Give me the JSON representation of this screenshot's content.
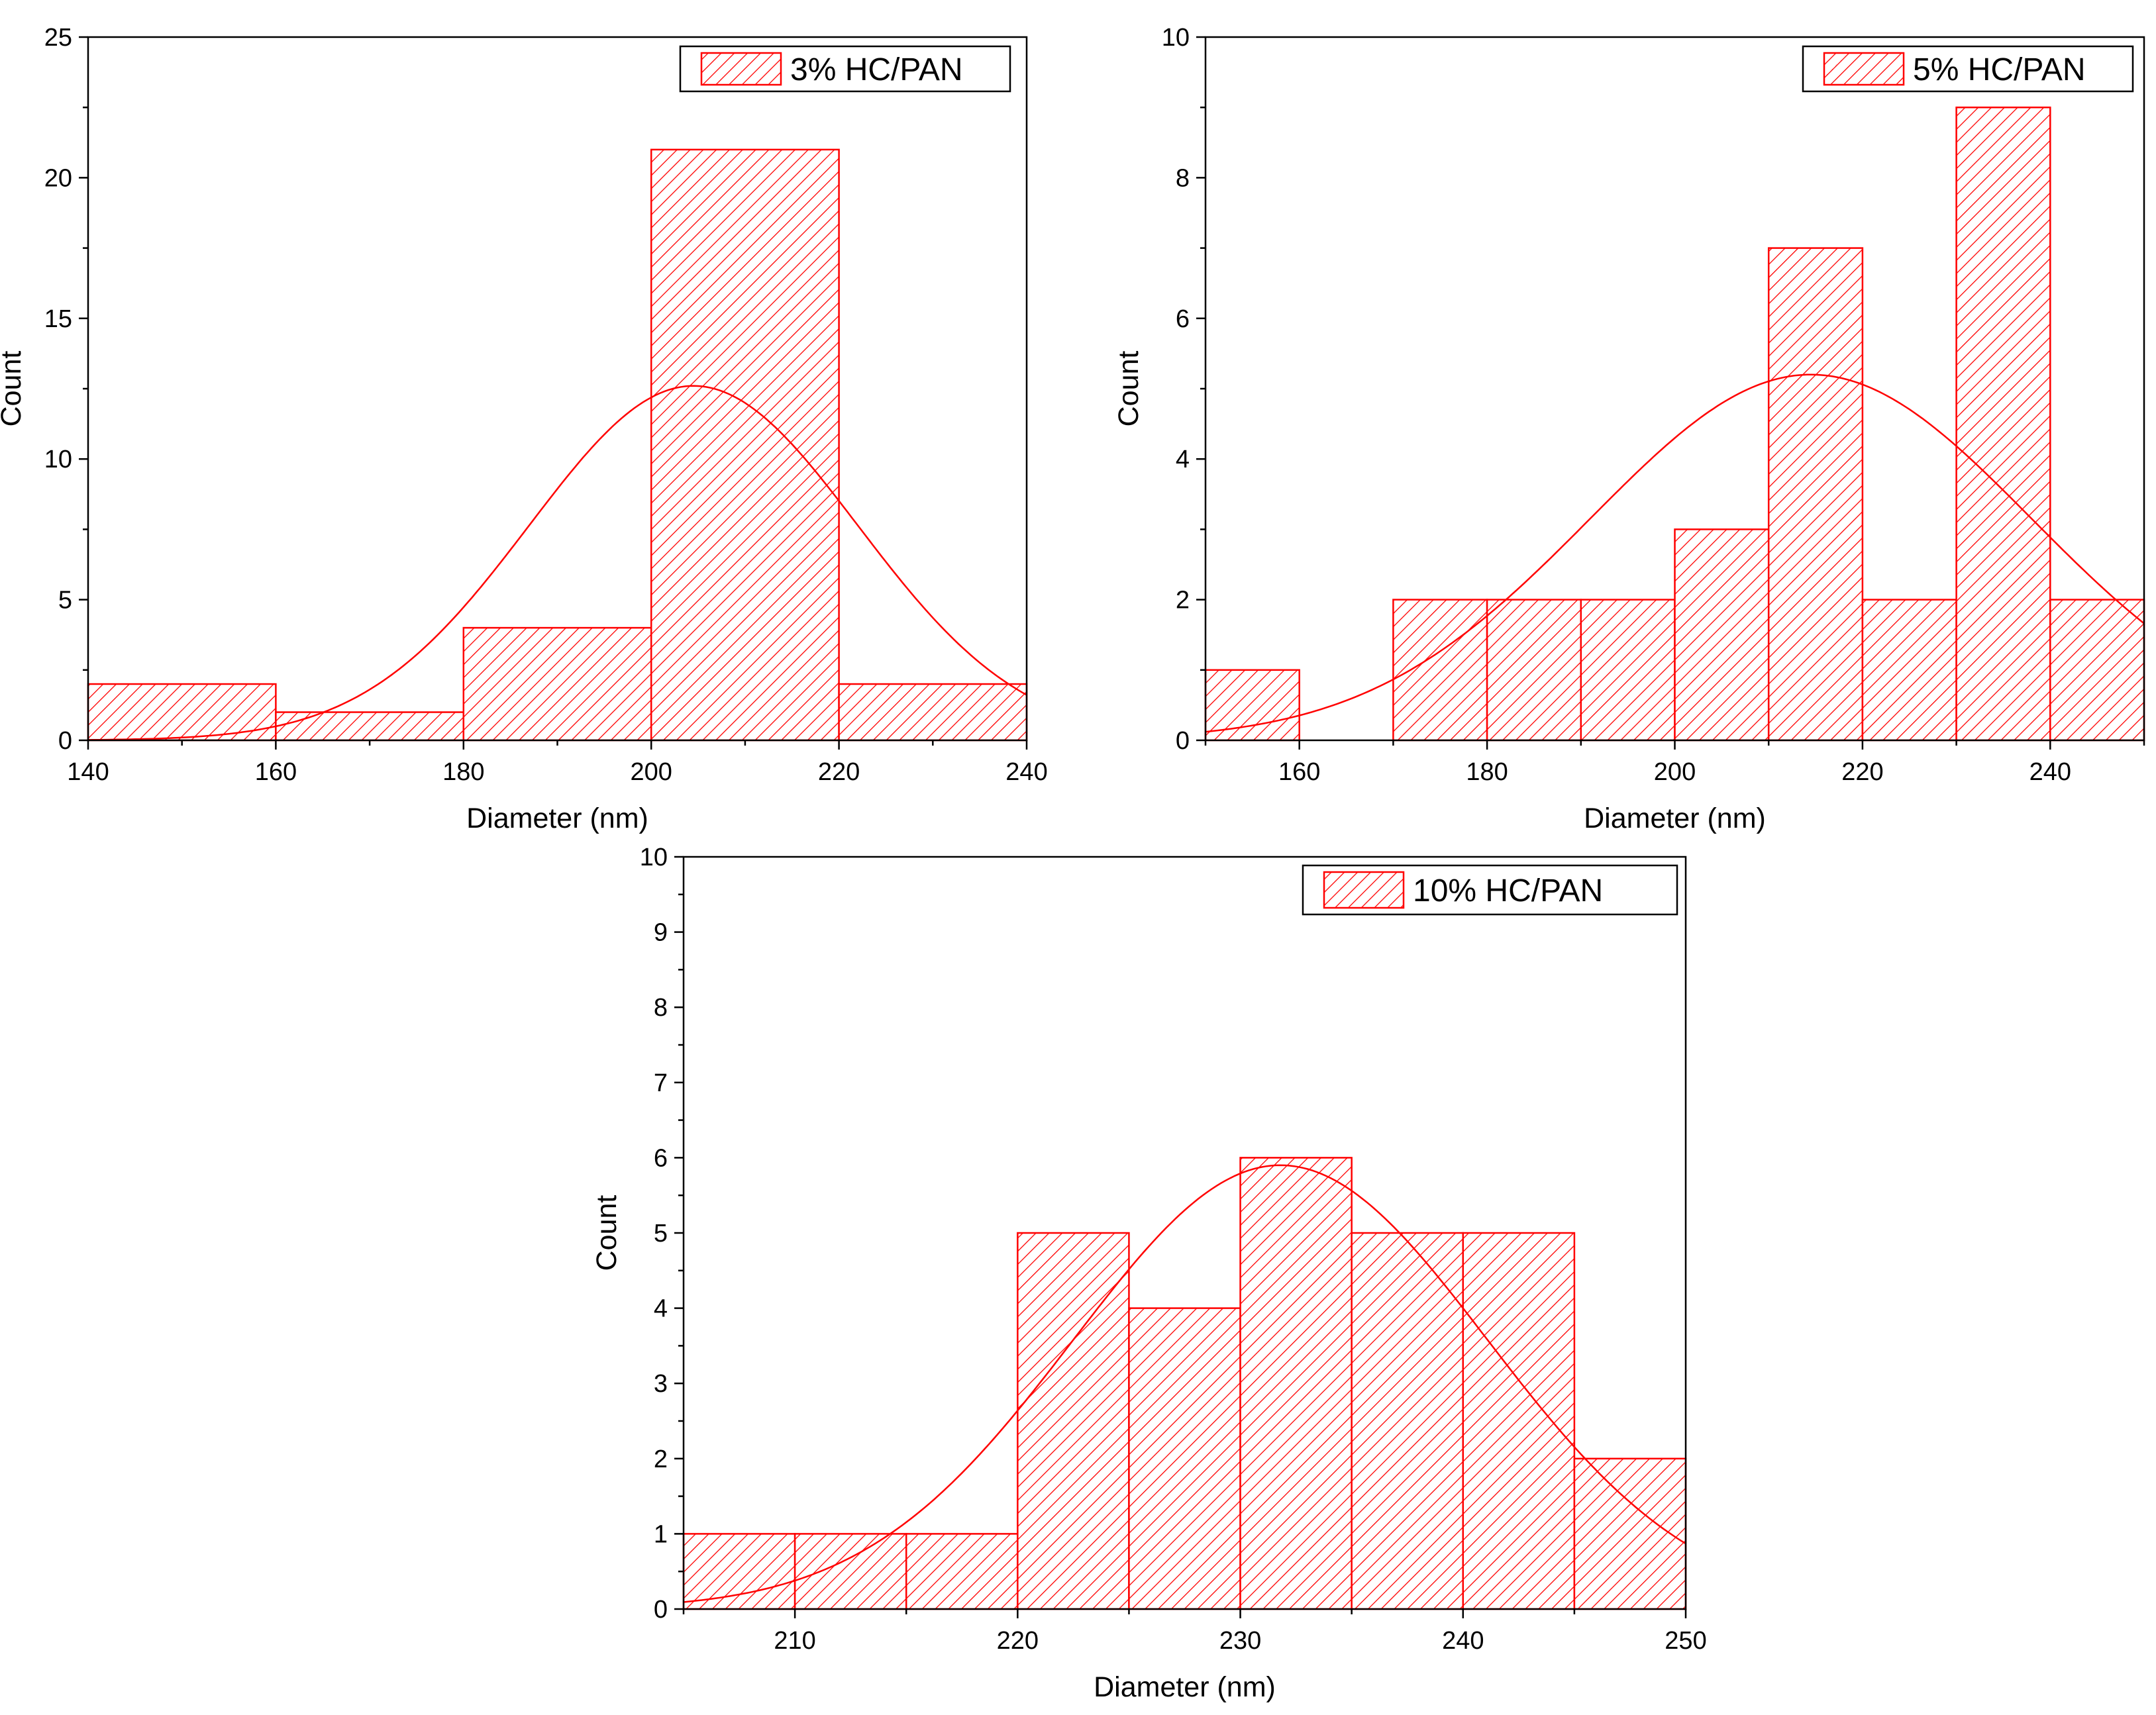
{
  "colors": {
    "accent": "#ff0000",
    "axis": "#000000",
    "background": "#ffffff"
  },
  "chart_data": [
    {
      "type": "bar",
      "subtype": "histogram",
      "legend": "3% HC/PAN",
      "legend_position": "top-right",
      "xlabel": "Diameter (nm)",
      "ylabel": "Count",
      "xlim": [
        140,
        240
      ],
      "ylim": [
        0,
        25
      ],
      "xticks": [
        140,
        160,
        180,
        200,
        220,
        240
      ],
      "yticks": [
        0,
        5,
        10,
        15,
        20,
        25
      ],
      "bins": [
        {
          "from": 140,
          "to": 160,
          "count": 2
        },
        {
          "from": 160,
          "to": 180,
          "count": 1
        },
        {
          "from": 180,
          "to": 200,
          "count": 4
        },
        {
          "from": 200,
          "to": 220,
          "count": 21
        },
        {
          "from": 220,
          "to": 240,
          "count": 2
        }
      ],
      "fit": {
        "type": "normal",
        "mean": 204.5,
        "sd": 17.5,
        "peak": 12.6
      }
    },
    {
      "type": "bar",
      "subtype": "histogram",
      "legend": "5% HC/PAN",
      "legend_position": "top-right",
      "xlabel": "Diameter (nm)",
      "ylabel": "Count",
      "xlim": [
        150,
        250
      ],
      "ylim": [
        0,
        10
      ],
      "xticks": [
        160,
        180,
        200,
        220,
        240
      ],
      "yticks": [
        0,
        2,
        4,
        6,
        8,
        10
      ],
      "bins": [
        {
          "from": 150,
          "to": 160,
          "count": 1
        },
        {
          "from": 170,
          "to": 180,
          "count": 2
        },
        {
          "from": 180,
          "to": 190,
          "count": 2
        },
        {
          "from": 190,
          "to": 200,
          "count": 2
        },
        {
          "from": 200,
          "to": 210,
          "count": 3
        },
        {
          "from": 210,
          "to": 220,
          "count": 7
        },
        {
          "from": 220,
          "to": 230,
          "count": 2
        },
        {
          "from": 230,
          "to": 240,
          "count": 9
        },
        {
          "from": 240,
          "to": 250,
          "count": 2
        }
      ],
      "fit": {
        "type": "normal",
        "mean": 214.5,
        "sd": 23.5,
        "peak": 5.2
      }
    },
    {
      "type": "bar",
      "subtype": "histogram",
      "legend": "10% HC/PAN",
      "legend_position": "top-right",
      "xlabel": "Diameter (nm)",
      "ylabel": "Count",
      "xlim": [
        205,
        250
      ],
      "ylim": [
        0,
        10
      ],
      "xticks": [
        210,
        220,
        230,
        240,
        250
      ],
      "yticks": [
        0,
        1,
        2,
        3,
        4,
        5,
        6,
        7,
        8,
        9,
        10
      ],
      "bins": [
        {
          "from": 205,
          "to": 210,
          "count": 1
        },
        {
          "from": 210,
          "to": 215,
          "count": 1
        },
        {
          "from": 215,
          "to": 220,
          "count": 1
        },
        {
          "from": 220,
          "to": 225,
          "count": 5
        },
        {
          "from": 225,
          "to": 230,
          "count": 4
        },
        {
          "from": 230,
          "to": 235,
          "count": 6
        },
        {
          "from": 235,
          "to": 240,
          "count": 5
        },
        {
          "from": 240,
          "to": 245,
          "count": 5
        },
        {
          "from": 245,
          "to": 250,
          "count": 2
        }
      ],
      "fit": {
        "type": "normal",
        "mean": 231.8,
        "sd": 9.3,
        "peak": 5.9
      }
    }
  ]
}
